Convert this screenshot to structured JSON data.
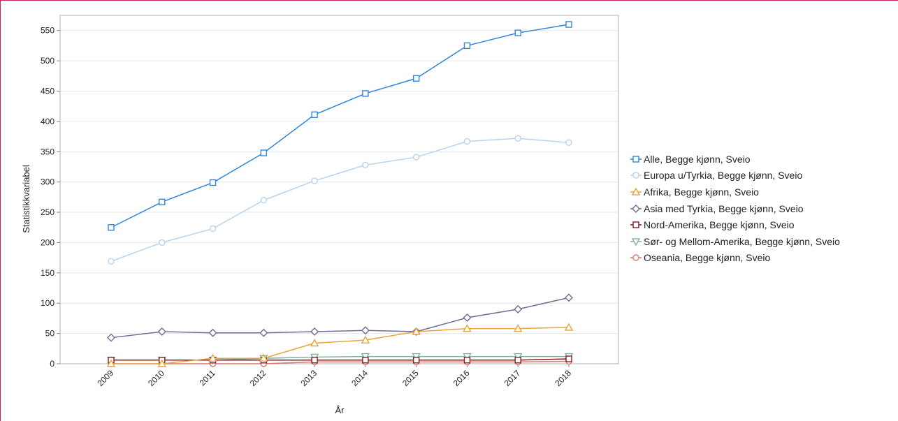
{
  "chart_data": {
    "type": "line",
    "xlabel": "År",
    "ylabel": "Statistikkvariabel",
    "ylim": [
      0,
      575
    ],
    "yticks": [
      0,
      50,
      100,
      150,
      200,
      250,
      300,
      350,
      400,
      450,
      500,
      550
    ],
    "grid": true,
    "legend_position": "right",
    "x": [
      "2009",
      "2010",
      "2011",
      "2012",
      "2013",
      "2014",
      "2015",
      "2016",
      "2017",
      "2018"
    ],
    "series": [
      {
        "name": "Alle, Begge kjønn, Sveio",
        "color": "#2e86de",
        "marker": "square",
        "values": [
          225,
          267,
          299,
          348,
          411,
          446,
          471,
          525,
          546,
          560
        ]
      },
      {
        "name": "Europa u/Tyrkia, Begge kjønn, Sveio",
        "color": "#b8d3ec",
        "marker": "circle",
        "values": [
          169,
          200,
          223,
          270,
          302,
          328,
          341,
          367,
          372,
          365
        ]
      },
      {
        "name": "Afrika, Begge kjønn, Sveio",
        "color": "#e8a33a",
        "marker": "triangle-up",
        "values": [
          0,
          0,
          9,
          9,
          34,
          39,
          53,
          58,
          58,
          60
        ]
      },
      {
        "name": "Asia med Tyrkia, Begge kjønn, Sveio",
        "color": "#6a6f94",
        "marker": "diamond",
        "values": [
          43,
          53,
          51,
          51,
          53,
          55,
          53,
          76,
          90,
          109
        ]
      },
      {
        "name": "Nord-Amerika, Begge kjønn, Sveio",
        "color": "#8b1a1a",
        "marker": "square",
        "values": [
          6,
          6,
          6,
          6,
          6,
          6,
          6,
          6,
          6,
          8
        ]
      },
      {
        "name": "Sør- og Mellom-Amerika, Begge kjønn, Sveio",
        "color": "#8aada4",
        "marker": "triangle-down",
        "values": [
          6,
          6,
          6,
          9,
          11,
          12,
          12,
          12,
          12,
          12
        ]
      },
      {
        "name": "Oseania, Begge kjønn, Sveio",
        "color": "#d9776f",
        "marker": "circle",
        "values": [
          0,
          0,
          0,
          0,
          3,
          3,
          3,
          3,
          3,
          4
        ]
      }
    ]
  }
}
